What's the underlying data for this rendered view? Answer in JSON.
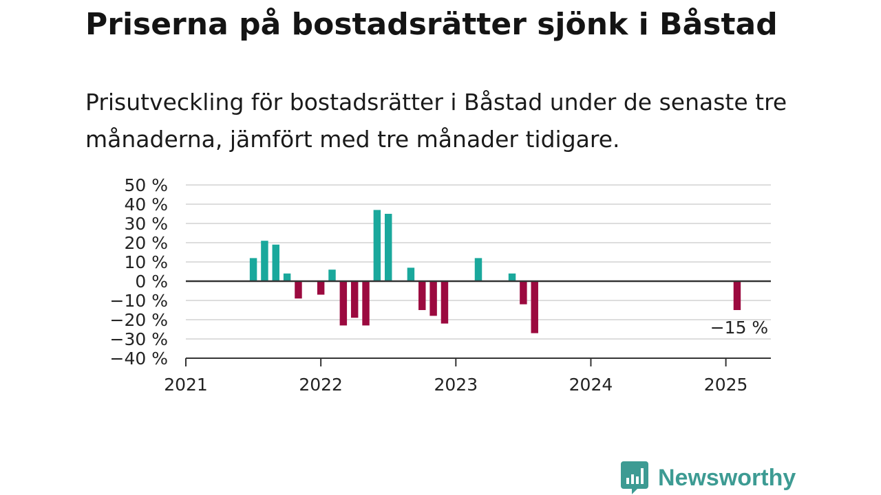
{
  "header": {
    "title": "Priserna på bostadsrätter sjönk i Båstad",
    "subtitle": "Prisutveckling för bostadsrätter i Båstad under de senaste tre månaderna, jämfört med tre månader tidigare."
  },
  "branding": {
    "name": "Newsworthy",
    "color": "#3d9b93"
  },
  "chart_data": {
    "type": "bar",
    "title": "",
    "xlabel": "",
    "ylabel": "",
    "ylim": [
      -40,
      50
    ],
    "yticks": [
      50,
      40,
      30,
      20,
      10,
      0,
      -10,
      -20,
      -30,
      -40
    ],
    "ytick_labels": [
      "50 %",
      "40 %",
      "30 %",
      "20 %",
      "10 %",
      "0 %",
      "−10 %",
      "−20 %",
      "−30 %",
      "−40 %"
    ],
    "xlim": [
      "2021-01",
      "2025-05"
    ],
    "xticks": [
      "2021",
      "2022",
      "2023",
      "2024",
      "2025"
    ],
    "grid": true,
    "colors": {
      "positive": "#1aa89c",
      "negative": "#9b0a3f",
      "grid": "#dddddd",
      "axis": "#333333"
    },
    "annotation": {
      "label": "−15 %",
      "date": "2025-02"
    },
    "series": [
      {
        "dates": [
          "2021-07",
          "2021-08",
          "2021-09",
          "2021-10",
          "2021-11",
          "2021-12",
          "2022-01",
          "2022-02",
          "2022-03",
          "2022-04",
          "2022-05",
          "2022-06",
          "2022-07",
          "2022-08",
          "2022-09",
          "2022-10",
          "2022-11",
          "2022-12",
          "2023-01",
          "2023-02",
          "2023-03",
          "2023-04",
          "2023-05",
          "2023-06",
          "2023-07",
          "2023-08",
          "2023-09",
          "2023-10",
          "2023-11",
          "2023-12",
          "2024-01",
          "2024-02",
          "2024-03",
          "2024-04",
          "2024-05",
          "2024-06",
          "2024-07",
          "2024-08",
          "2024-09",
          "2024-10",
          "2024-11",
          "2024-12",
          "2025-01",
          "2025-02"
        ],
        "values": [
          12,
          21,
          19,
          4,
          -9,
          null,
          -7,
          6,
          -23,
          -19,
          -23,
          37,
          35,
          null,
          7,
          -15,
          -18,
          -22,
          null,
          null,
          12,
          null,
          null,
          4,
          -12,
          -27,
          null,
          null,
          null,
          null,
          null,
          null,
          null,
          null,
          null,
          null,
          null,
          null,
          null,
          null,
          null,
          null,
          null,
          -15
        ]
      }
    ]
  }
}
